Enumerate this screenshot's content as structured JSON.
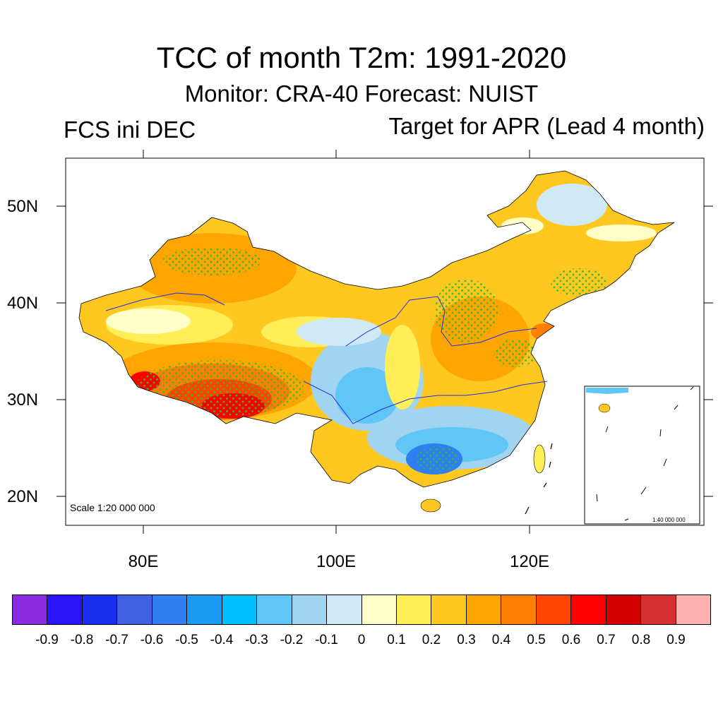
{
  "header": {
    "title": "TCC of month T2m: 1991-2020",
    "subtitle": "Monitor: CRA-40   Forecast: NUIST",
    "left_label": "FCS ini DEC",
    "right_label": "Target for APR (Lead 4 month)"
  },
  "axes": {
    "lat_labels": [
      "50N",
      "40N",
      "30N",
      "20N"
    ],
    "lon_labels": [
      "80E",
      "100E",
      "120E"
    ]
  },
  "map": {
    "scale_text": "Scale 1:20 000 000",
    "inset_scale_text": "1:40 000 000"
  },
  "colorbar": {
    "colors": [
      "#8a2be2",
      "#2a14f5",
      "#1a2ef0",
      "#4060e0",
      "#2f7ff0",
      "#1a9cf5",
      "#00bfff",
      "#5fc6f5",
      "#a0d4f0",
      "#cfe9f7",
      "#ffffc8",
      "#ffee58",
      "#ffc820",
      "#ffa500",
      "#ff8000",
      "#ff4500",
      "#ff0000",
      "#d20000",
      "#d73030",
      "#ffb0b0"
    ],
    "labels": [
      "-0.9",
      "-0.8",
      "-0.7",
      "-0.6",
      "-0.5",
      "-0.4",
      "-0.3",
      "-0.2",
      "-0.1",
      "0",
      "0.1",
      "0.2",
      "0.3",
      "0.4",
      "0.5",
      "0.6",
      "0.7",
      "0.8",
      "0.9"
    ]
  }
}
